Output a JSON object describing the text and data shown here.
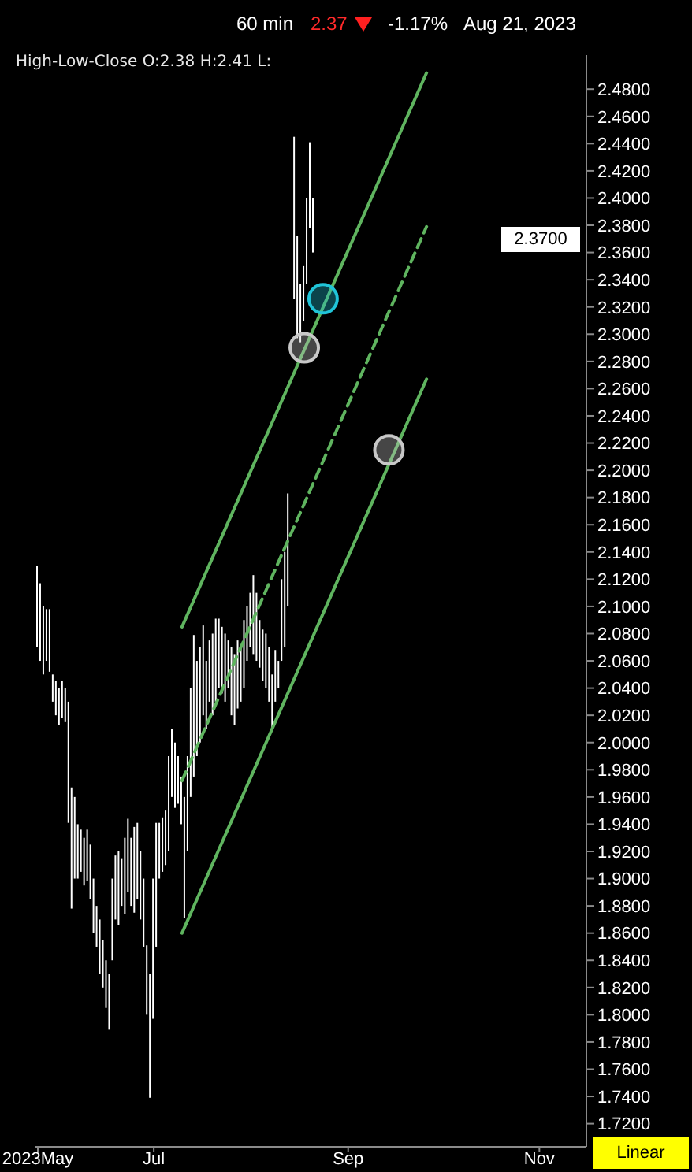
{
  "chart_data": {
    "type": "bar",
    "title": "60 min",
    "subtitle": "High-Low-Close O:2.38 H:2.41 L:",
    "annotations": [
      "2.37",
      "-1.17%",
      "Aug 21, 2023",
      "2.3700",
      "Linear"
    ],
    "x": [
      "2023-05-25",
      "2023-05-26",
      "2023-05-27",
      "2023-05-28",
      "2023-05-29",
      "2023-05-30",
      "2023-05-31",
      "2023-06-01",
      "2023-06-02",
      "2023-06-03",
      "2023-06-04",
      "2023-06-05",
      "2023-06-06",
      "2023-06-07",
      "2023-06-08",
      "2023-06-09",
      "2023-06-10",
      "2023-06-11",
      "2023-06-12",
      "2023-06-13",
      "2023-06-14",
      "2023-06-15",
      "2023-06-16",
      "2023-06-17",
      "2023-06-18",
      "2023-06-19",
      "2023-06-20",
      "2023-06-21",
      "2023-06-22",
      "2023-06-23",
      "2023-06-24",
      "2023-06-25",
      "2023-06-26",
      "2023-06-27",
      "2023-06-28",
      "2023-06-29",
      "2023-06-30",
      "2023-07-01",
      "2023-07-02",
      "2023-07-03",
      "2023-07-04",
      "2023-07-05",
      "2023-07-06",
      "2023-07-07",
      "2023-07-08",
      "2023-07-09",
      "2023-07-10",
      "2023-07-11",
      "2023-07-12",
      "2023-07-13",
      "2023-07-14",
      "2023-07-15",
      "2023-07-16",
      "2023-07-17",
      "2023-07-18",
      "2023-07-19",
      "2023-07-20",
      "2023-07-21",
      "2023-07-22",
      "2023-07-23",
      "2023-07-24",
      "2023-07-25",
      "2023-07-26",
      "2023-07-27",
      "2023-07-28",
      "2023-07-29",
      "2023-07-30",
      "2023-07-31",
      "2023-08-01",
      "2023-08-02",
      "2023-08-03",
      "2023-08-04",
      "2023-08-05",
      "2023-08-06",
      "2023-08-07",
      "2023-08-08",
      "2023-08-09",
      "2023-08-10",
      "2023-08-11",
      "2023-08-12",
      "2023-08-13",
      "2023-08-14",
      "2023-08-15",
      "2023-08-16",
      "2023-08-17",
      "2023-08-18",
      "2023-08-19",
      "2023-08-20",
      "2023-08-21"
    ],
    "series": [
      {
        "color": "#ffffff",
        "base": [
          2.07,
          2.06,
          2.05,
          2.06,
          2.052,
          2.03,
          2.02,
          2.013,
          2.018,
          2.015,
          1.941,
          1.878,
          1.9,
          1.9,
          1.905,
          1.895,
          1.898,
          1.885,
          1.86,
          1.85,
          1.83,
          1.82,
          1.805,
          1.789,
          1.84,
          1.87,
          1.866,
          1.88,
          1.874,
          1.89,
          1.88,
          1.875,
          1.885,
          1.87,
          1.85,
          1.8,
          1.739,
          1.797,
          1.85,
          1.9,
          1.905,
          1.91,
          1.92,
          1.96,
          1.952,
          1.955,
          1.94,
          1.871,
          1.92,
          1.96,
          1.975,
          1.99,
          2.0,
          2.02,
          2.01,
          2.03,
          2.02,
          2.03,
          2.04,
          2.036,
          2.03,
          2.04,
          2.02,
          2.013,
          2.025,
          2.03,
          2.04,
          2.06,
          2.07,
          2.065,
          2.06,
          2.055,
          2.045,
          2.04,
          2.03,
          2.011,
          2.03,
          2.04,
          2.06,
          2.07,
          2.1,
          null,
          2.326,
          2.297,
          2.294,
          2.31,
          2.337,
          2.378,
          2.36
        ],
        "values": [
          0.06,
          0.057,
          0.05,
          0.038,
          0.046,
          0.02,
          0.025,
          0.027,
          0.027,
          0.025,
          0.089,
          0.089,
          0.06,
          0.04,
          0.031,
          0.035,
          0.038,
          0.04,
          0.04,
          0.03,
          0.04,
          0.035,
          0.035,
          0.041,
          0.06,
          0.047,
          0.054,
          0.035,
          0.056,
          0.054,
          0.05,
          0.063,
          0.056,
          0.05,
          0.05,
          0.051,
          0.091,
          0.103,
          0.091,
          0.041,
          0.04,
          0.04,
          0.07,
          0.05,
          0.048,
          0.035,
          0.035,
          0.089,
          0.07,
          0.08,
          0.104,
          0.07,
          0.07,
          0.066,
          0.05,
          0.045,
          0.06,
          0.061,
          0.051,
          0.049,
          0.05,
          0.035,
          0.05,
          0.052,
          0.05,
          0.04,
          0.05,
          0.04,
          0.04,
          0.058,
          0.05,
          0.035,
          0.038,
          0.04,
          0.04,
          0.039,
          0.038,
          0.02,
          0.06,
          0.07,
          0.083,
          null,
          0.119,
          0.075,
          0.043,
          0.04,
          0.063,
          0.063,
          0.04
        ]
      },
      {
        "type": "line",
        "color": "#5fb45f",
        "line_style": "solid",
        "x": [
          "2023-07-10",
          "2023-09-26"
        ],
        "values": [
          2.085,
          2.492
        ]
      },
      {
        "type": "line",
        "color": "#5fb45f",
        "line_style": "dashed",
        "x": [
          "2023-07-10",
          "2023-09-26"
        ],
        "values": [
          1.972,
          2.379
        ]
      },
      {
        "type": "line",
        "color": "#5fb45f",
        "line_style": "solid",
        "x": [
          "2023-07-10",
          "2023-09-26"
        ],
        "values": [
          1.86,
          2.267
        ]
      },
      {
        "type": "scatter",
        "marker": "circle",
        "x": [
          "2023-08-18",
          "2023-08-24",
          "2023-09-14"
        ],
        "values": [
          2.29,
          2.326,
          2.215
        ],
        "colors": [
          "#c8c8c8",
          "#20c4d8",
          "#c8c8c8"
        ]
      }
    ],
    "xlim": [
      "2023-05-24",
      "2023-11-16"
    ],
    "xticks": [
      {
        "value": "2023-05-25",
        "label": "2023May"
      },
      {
        "value": "2023-07-01",
        "label": "Jul"
      },
      {
        "value": "2023-09-01",
        "label": "Sep"
      },
      {
        "value": "2023-11-01",
        "label": "Nov"
      }
    ],
    "ylim": [
      1.703,
      2.505
    ],
    "yticks": [
      {
        "value": 1.72,
        "label": "1.7200"
      },
      {
        "value": 1.74,
        "label": "1.7400"
      },
      {
        "value": 1.76,
        "label": "1.7600"
      },
      {
        "value": 1.78,
        "label": "1.7800"
      },
      {
        "value": 1.8,
        "label": "1.8000"
      },
      {
        "value": 1.82,
        "label": "1.8200"
      },
      {
        "value": 1.84,
        "label": "1.8400"
      },
      {
        "value": 1.86,
        "label": "1.8600"
      },
      {
        "value": 1.88,
        "label": "1.8800"
      },
      {
        "value": 1.9,
        "label": "1.9000"
      },
      {
        "value": 1.92,
        "label": "1.9200"
      },
      {
        "value": 1.94,
        "label": "1.9400"
      },
      {
        "value": 1.96,
        "label": "1.9600"
      },
      {
        "value": 1.98,
        "label": "1.9800"
      },
      {
        "value": 2.0,
        "label": "2.0000"
      },
      {
        "value": 2.02,
        "label": "2.0200"
      },
      {
        "value": 2.04,
        "label": "2.0400"
      },
      {
        "value": 2.06,
        "label": "2.0600"
      },
      {
        "value": 2.08,
        "label": "2.0800"
      },
      {
        "value": 2.1,
        "label": "2.1000"
      },
      {
        "value": 2.12,
        "label": "2.1200"
      },
      {
        "value": 2.14,
        "label": "2.1400"
      },
      {
        "value": 2.16,
        "label": "2.1600"
      },
      {
        "value": 2.18,
        "label": "2.1800"
      },
      {
        "value": 2.2,
        "label": "2.2000"
      },
      {
        "value": 2.22,
        "label": "2.2200"
      },
      {
        "value": 2.24,
        "label": "2.2400"
      },
      {
        "value": 2.26,
        "label": "2.2600"
      },
      {
        "value": 2.28,
        "label": "2.2800"
      },
      {
        "value": 2.3,
        "label": "2.3000"
      },
      {
        "value": 2.32,
        "label": "2.3200"
      },
      {
        "value": 2.34,
        "label": "2.3400"
      },
      {
        "value": 2.36,
        "label": "2.3600"
      },
      {
        "value": 2.38,
        "label": "2.3800"
      },
      {
        "value": 2.4,
        "label": "2.4000"
      },
      {
        "value": 2.42,
        "label": "2.4200"
      },
      {
        "value": 2.44,
        "label": "2.4400"
      },
      {
        "value": 2.46,
        "label": "2.4600"
      },
      {
        "value": 2.48,
        "label": "2.4800"
      }
    ]
  }
}
